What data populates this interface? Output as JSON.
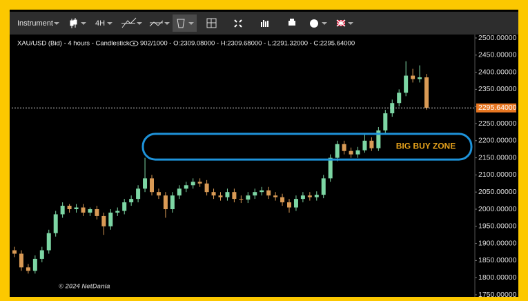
{
  "toolbar": {
    "instrument": "Instrument",
    "interval": "4H"
  },
  "chart_data": {
    "type": "candlestick",
    "title": "XAU/USD (Bid) - 4 hours - Candlestick",
    "subtitle": "902/1000 - O:2309.08000 - H:2309.68000 - L:2291.32000 - C:2295.64000",
    "up_color": "#7dd6a4",
    "down_color": "#d99a55",
    "open": [
      1880,
      1870,
      1830,
      1820,
      1855,
      1880,
      1930,
      1985,
      2010,
      2000,
      2005,
      1990,
      2000,
      1980,
      1950,
      1990,
      1995,
      2020,
      2030,
      2060,
      2090,
      2050,
      2040,
      2000,
      2040,
      2060,
      2070,
      2080,
      2075,
      2050,
      2040,
      2035,
      2050,
      2030,
      2028,
      2040,
      2050,
      2055,
      2040,
      2035,
      2020,
      2005,
      2030,
      2040,
      2035,
      2042,
      2090,
      2150,
      2190,
      2170,
      2160,
      2172,
      2200,
      2178,
      2230,
      2280,
      2310,
      2340,
      2390,
      2380,
      2385
    ],
    "high": [
      1890,
      1880,
      1840,
      1865,
      1890,
      1940,
      1995,
      2020,
      2015,
      2015,
      2015,
      2005,
      2010,
      1990,
      2000,
      2005,
      2030,
      2040,
      2070,
      2150,
      2100,
      2060,
      2050,
      2050,
      2070,
      2080,
      2090,
      2090,
      2085,
      2060,
      2050,
      2060,
      2060,
      2040,
      2050,
      2060,
      2065,
      2065,
      2050,
      2045,
      2030,
      2040,
      2050,
      2050,
      2052,
      2100,
      2160,
      2200,
      2200,
      2180,
      2182,
      2220,
      2210,
      2240,
      2290,
      2320,
      2350,
      2432,
      2410,
      2420,
      2395
    ],
    "low": [
      1860,
      1820,
      1812,
      1812,
      1845,
      1870,
      1920,
      1975,
      1990,
      1990,
      1980,
      1980,
      1970,
      1925,
      1940,
      1980,
      1985,
      2010,
      2020,
      2050,
      2040,
      2030,
      1975,
      1990,
      2030,
      2050,
      2060,
      2065,
      2040,
      2030,
      2025,
      2025,
      2020,
      2018,
      2018,
      2030,
      2040,
      2030,
      2025,
      2010,
      1990,
      1995,
      2020,
      2025,
      2025,
      2032,
      2080,
      2140,
      2160,
      2150,
      2150,
      2165,
      2170,
      2170,
      2220,
      2270,
      2300,
      2330,
      2370,
      2370,
      2290
    ],
    "close": [
      1870,
      1830,
      1820,
      1855,
      1880,
      1930,
      1985,
      2010,
      2000,
      2005,
      1990,
      2000,
      1980,
      1950,
      1990,
      1995,
      2020,
      2030,
      2060,
      2090,
      2050,
      2040,
      2000,
      2040,
      2060,
      2070,
      2080,
      2075,
      2050,
      2040,
      2035,
      2050,
      2030,
      2028,
      2040,
      2050,
      2055,
      2040,
      2035,
      2020,
      2005,
      2030,
      2040,
      2035,
      2042,
      2090,
      2150,
      2190,
      2170,
      2160,
      2172,
      2200,
      2178,
      2230,
      2280,
      2310,
      2340,
      2390,
      2380,
      2385,
      2296
    ],
    "ylim": [
      1750,
      2500
    ],
    "yticks": [
      {
        "value": 2500,
        "label": "2500.00000"
      },
      {
        "value": 2450,
        "label": "2450.00000"
      },
      {
        "value": 2400,
        "label": "2400.00000"
      },
      {
        "value": 2350,
        "label": "2350.00000"
      },
      {
        "value": 2300,
        "label": "2300.00000"
      },
      {
        "value": 2250,
        "label": "2250.00000"
      },
      {
        "value": 2200,
        "label": "2200.00000"
      },
      {
        "value": 2150,
        "label": "2150.00000"
      },
      {
        "value": 2100,
        "label": "2100.00000"
      },
      {
        "value": 2050,
        "label": "2050.00000"
      },
      {
        "value": 2000,
        "label": "2000.00000"
      },
      {
        "value": 1950,
        "label": "1950.00000"
      },
      {
        "value": 1900,
        "label": "1900.00000"
      },
      {
        "value": 1850,
        "label": "1850.00000"
      },
      {
        "value": 1800,
        "label": "1800.00000"
      },
      {
        "value": 1750,
        "label": "1750.00000"
      }
    ],
    "last_price": {
      "value": 2295.64,
      "label": "2295.64000"
    },
    "zone": {
      "text": "BIG BUY ZONE",
      "range": [
        2145,
        2220
      ],
      "color": "#1e93da",
      "text_color": "#e6a21c"
    },
    "copyright": "© 2024 NetDania"
  }
}
